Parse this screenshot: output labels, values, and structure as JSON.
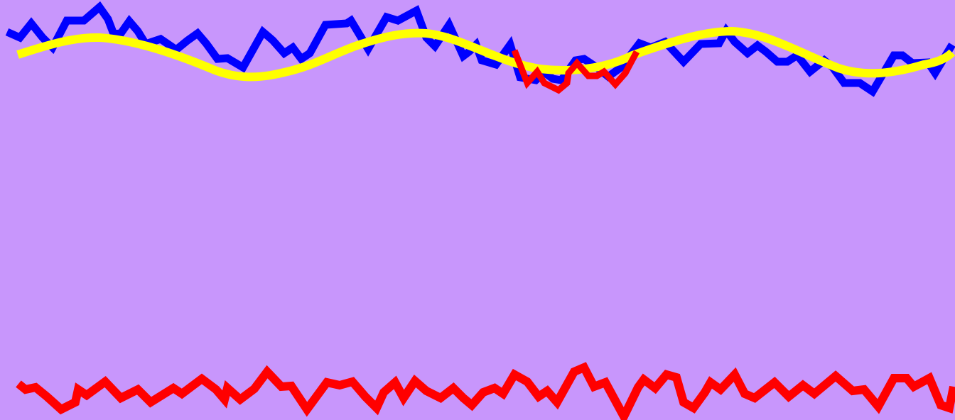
{
  "scene": {
    "background_color": "#c896fc",
    "line_colors": {
      "blue": "#0000ff",
      "yellow": "#ffff00",
      "red": "#ff0000"
    }
  }
}
